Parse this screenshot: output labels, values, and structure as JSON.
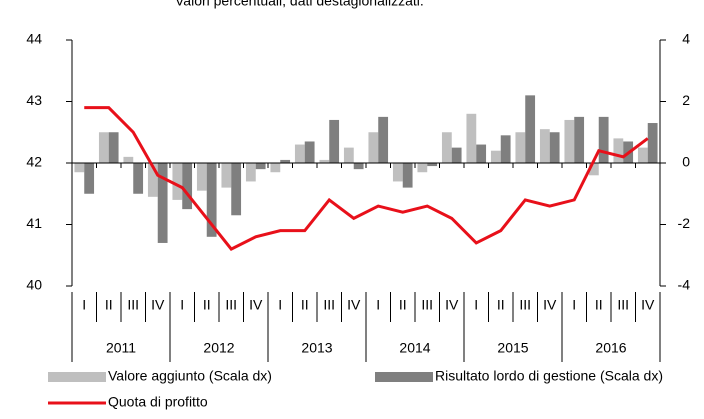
{
  "chart_data": {
    "type": "bar-line",
    "subtitle": "Valori percentuali, dati destagionalizzati.",
    "categories": [
      "I",
      "II",
      "III",
      "IV",
      "I",
      "II",
      "III",
      "IV",
      "I",
      "II",
      "III",
      "IV",
      "I",
      "II",
      "III",
      "IV",
      "I",
      "II",
      "III",
      "IV",
      "I",
      "II",
      "III",
      "IV"
    ],
    "years": [
      "2011",
      "2012",
      "2013",
      "2014",
      "2015",
      "2016"
    ],
    "series": [
      {
        "name": "Valore aggiunto (Scala dx)",
        "type": "bar",
        "axis": "y2",
        "color": "#bfbfbf",
        "values": [
          -0.3,
          1.0,
          0.2,
          -1.1,
          -1.2,
          -0.9,
          -0.8,
          -0.6,
          -0.3,
          0.6,
          0.1,
          0.5,
          1.0,
          -0.6,
          -0.3,
          1.0,
          1.6,
          0.4,
          1.0,
          1.1,
          1.4,
          -0.4,
          0.8,
          0.5
        ]
      },
      {
        "name": "Risultato lordo di gestione (Scala dx)",
        "type": "bar",
        "axis": "y2",
        "color": "#7f7f7f",
        "values": [
          -1.0,
          1.0,
          -1.0,
          -2.6,
          -1.5,
          -2.4,
          -1.7,
          -0.2,
          0.1,
          0.7,
          1.4,
          -0.2,
          1.5,
          -0.8,
          -0.1,
          0.5,
          0.6,
          0.9,
          2.2,
          1.0,
          1.5,
          1.5,
          0.7,
          1.3
        ]
      },
      {
        "name": "Quota di profitto",
        "type": "line",
        "color": "#e8101a",
        "values": [
          42.9,
          42.9,
          42.5,
          41.8,
          41.6,
          41.1,
          40.6,
          40.8,
          40.9,
          40.9,
          41.4,
          41.1,
          41.3,
          41.2,
          41.3,
          41.1,
          40.7,
          40.9,
          41.4,
          41.3,
          41.4,
          42.2,
          42.1,
          42.4
        ]
      }
    ],
    "ylim": [
      40,
      44
    ],
    "yticks": [
      40,
      41,
      42,
      43,
      44
    ],
    "y2lim": [
      -4,
      4
    ],
    "y2ticks": [
      -4,
      -2,
      0,
      2,
      4
    ]
  }
}
